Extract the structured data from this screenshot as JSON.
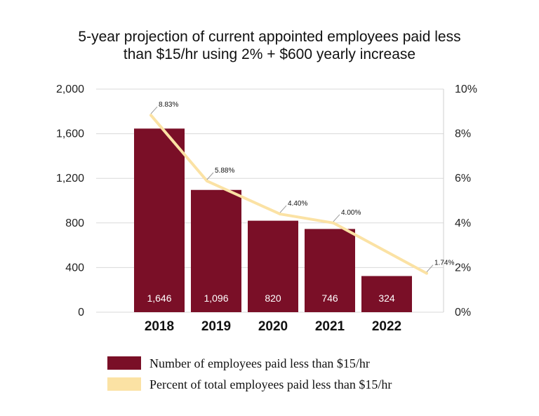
{
  "chart_data": {
    "type": "bar",
    "title_lines": [
      "5-year projection of current appointed employees paid less",
      "than $15/hr using 2% + $600 yearly increase"
    ],
    "categories": [
      "2018",
      "2019",
      "2020",
      "2021",
      "2022"
    ],
    "series": [
      {
        "name": "Number of employees paid less than $15/hr",
        "type": "bar",
        "axis": "left",
        "values": [
          1646,
          1096,
          820,
          746,
          324
        ],
        "labels": [
          "1,646",
          "1,096",
          "820",
          "746",
          "324"
        ],
        "color": "#7a0f27"
      },
      {
        "name": "Percent of total employees paid less than $15/hr",
        "type": "line",
        "axis": "right",
        "values": [
          8.83,
          5.88,
          4.4,
          4.0,
          1.74
        ],
        "labels": [
          "8.83%",
          "5.88%",
          "4.40%",
          "4.00%",
          "1.74%"
        ],
        "color": "#fbe2a4"
      }
    ],
    "y_left": {
      "ylim": [
        0,
        2000
      ],
      "ticks": [
        "0",
        "400",
        "800",
        "1,200",
        "1,600",
        "2,000"
      ],
      "values": [
        0,
        400,
        800,
        1200,
        1600,
        2000
      ]
    },
    "y_right": {
      "ylim": [
        0,
        10
      ],
      "ticks": [
        "0%",
        "2%",
        "4%",
        "6%",
        "8%",
        "10%"
      ],
      "values": [
        0,
        2,
        4,
        6,
        8,
        10
      ]
    },
    "grid": true,
    "legend_position": "bottom"
  }
}
